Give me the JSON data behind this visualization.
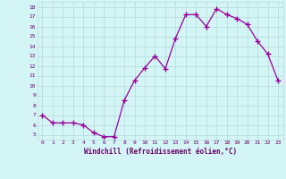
{
  "x": [
    0,
    1,
    2,
    3,
    4,
    5,
    6,
    7,
    8,
    9,
    10,
    11,
    12,
    13,
    14,
    15,
    16,
    17,
    18,
    19,
    20,
    21,
    22,
    23
  ],
  "y": [
    7.0,
    6.2,
    6.2,
    6.2,
    6.0,
    5.2,
    4.8,
    4.8,
    8.5,
    10.5,
    11.8,
    13.0,
    11.7,
    14.8,
    17.2,
    17.2,
    16.0,
    17.8,
    17.2,
    16.8,
    16.2,
    14.5,
    13.2,
    10.5
  ],
  "line_color": "#990099",
  "marker": "+",
  "bg_color": "#d4f5f5",
  "grid_color": "#b8dede",
  "xlabel": "Windchill (Refroidissement éolien,°C)",
  "xlabel_color": "#660066",
  "tick_color": "#660066",
  "yticks": [
    5,
    6,
    7,
    8,
    9,
    10,
    11,
    12,
    13,
    14,
    15,
    16,
    17,
    18
  ],
  "xlim": [
    -0.5,
    23.5
  ],
  "ylim": [
    4.5,
    18.5
  ]
}
